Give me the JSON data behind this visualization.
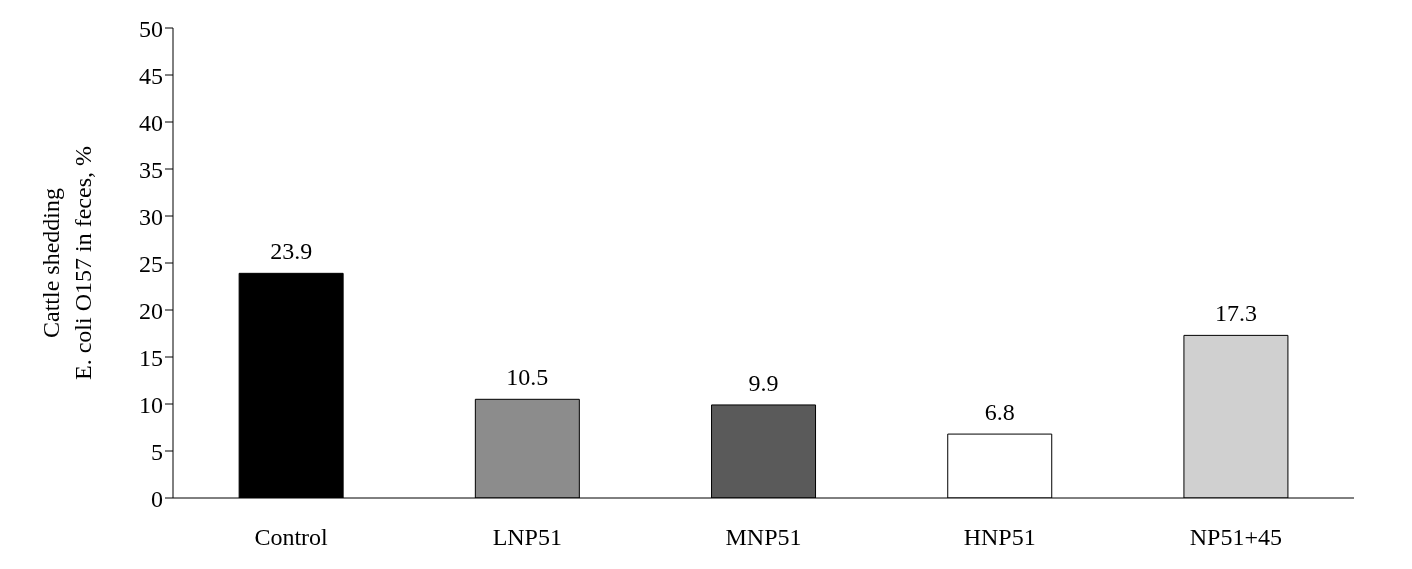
{
  "chart_data": {
    "type": "bar",
    "ylabel": "Cattle shedding\nE. coli  O157 in feces, %",
    "categories": [
      "Control",
      "LNP51",
      "MNP51",
      "HNP51",
      "NP51+45"
    ],
    "values": [
      23.9,
      10.5,
      9.9,
      6.8,
      17.3
    ],
    "colors": [
      "#000000",
      "#8c8c8c",
      "#5a5a5a",
      "#ffffff",
      "#d0d0d0"
    ],
    "ylim": [
      0,
      50
    ],
    "yticks": [
      0,
      5,
      10,
      15,
      20,
      25,
      30,
      35,
      40,
      45,
      50
    ],
    "grid": false,
    "data_labels": true
  }
}
